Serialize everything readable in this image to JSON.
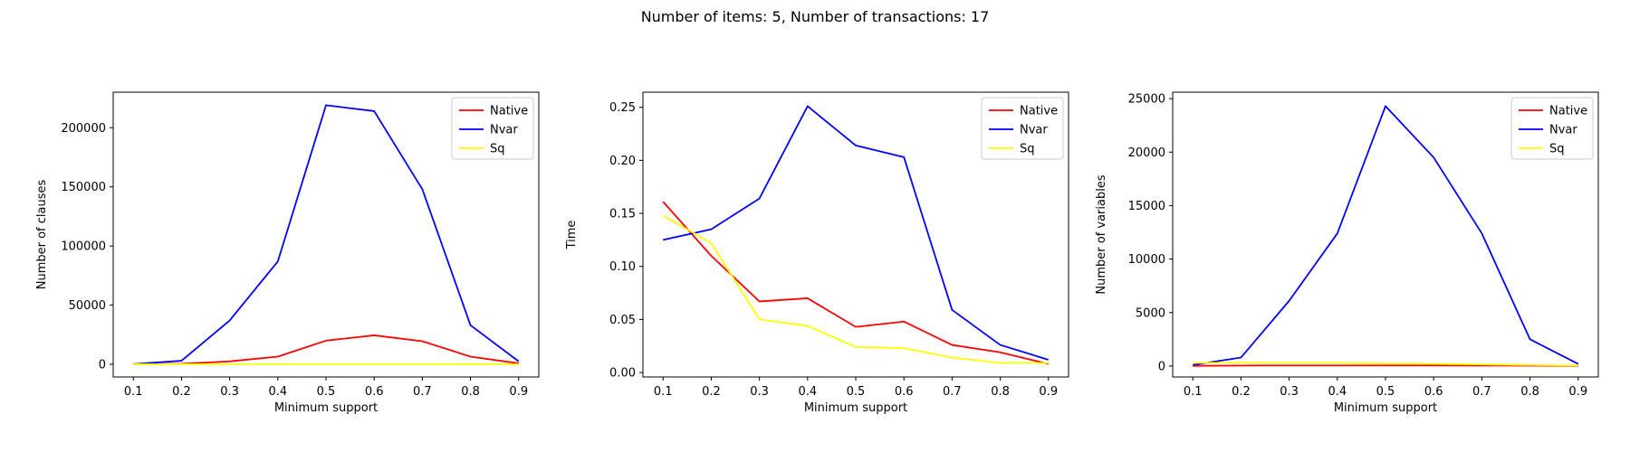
{
  "figure": {
    "title": "Number of items: 5, Number of transactions: 17"
  },
  "chart_data": [
    {
      "type": "line",
      "title": "",
      "xlabel": "Minimum support",
      "ylabel": "Number of clauses",
      "x": [
        0.1,
        0.2,
        0.3,
        0.4,
        0.5,
        0.6,
        0.7,
        0.8,
        0.9
      ],
      "xticks": [
        "0.1",
        "0.2",
        "0.3",
        "0.4",
        "0.5",
        "0.6",
        "0.7",
        "0.8",
        "0.9"
      ],
      "yticks": [
        0,
        50000,
        100000,
        150000,
        200000
      ],
      "yticklabels": [
        "0",
        "50000",
        "100000",
        "150000",
        "200000"
      ],
      "xlim": [
        0.0582,
        0.9418
      ],
      "ylim": [
        -10700,
        230000
      ],
      "grid": false,
      "legend_position": "top-right",
      "series": [
        {
          "name": "Native",
          "color": "#ff0000",
          "values": [
            100,
            500,
            2500,
            6500,
            20000,
            24500,
            19500,
            6500,
            800
          ]
        },
        {
          "name": "Nvar",
          "color": "#0000ff",
          "values": [
            200,
            3000,
            37000,
            87000,
            219000,
            214000,
            148000,
            33000,
            2500
          ]
        },
        {
          "name": "Sq",
          "color": "#ffff00",
          "values": [
            50,
            100,
            200,
            200,
            200,
            200,
            200,
            150,
            100
          ]
        }
      ]
    },
    {
      "type": "line",
      "title": "",
      "xlabel": "Minimum support",
      "ylabel": "Time",
      "x": [
        0.1,
        0.2,
        0.3,
        0.4,
        0.5,
        0.6,
        0.7,
        0.8,
        0.9
      ],
      "xticks": [
        "0.1",
        "0.2",
        "0.3",
        "0.4",
        "0.5",
        "0.6",
        "0.7",
        "0.8",
        "0.9"
      ],
      "yticks": [
        0,
        0.05,
        0.1,
        0.15,
        0.2,
        0.25
      ],
      "yticklabels": [
        "0.00",
        "0.05",
        "0.10",
        "0.15",
        "0.20",
        "0.25"
      ],
      "xlim": [
        0.0582,
        0.9418
      ],
      "ylim": [
        -0.0042,
        0.2642
      ],
      "grid": false,
      "legend_position": "top-right",
      "series": [
        {
          "name": "Native",
          "color": "#ff0000",
          "values": [
            0.161,
            0.11,
            0.067,
            0.07,
            0.043,
            0.048,
            0.026,
            0.019,
            0.008
          ]
        },
        {
          "name": "Nvar",
          "color": "#0000ff",
          "values": [
            0.125,
            0.135,
            0.164,
            0.251,
            0.214,
            0.203,
            0.059,
            0.026,
            0.012
          ]
        },
        {
          "name": "Sq",
          "color": "#ffff00",
          "values": [
            0.148,
            0.122,
            0.05,
            0.044,
            0.024,
            0.023,
            0.014,
            0.009,
            0.009
          ]
        }
      ]
    },
    {
      "type": "line",
      "title": "",
      "xlabel": "Minimum support",
      "ylabel": "Number of variables",
      "x": [
        0.1,
        0.2,
        0.3,
        0.4,
        0.5,
        0.6,
        0.7,
        0.8,
        0.9
      ],
      "xticks": [
        "0.1",
        "0.2",
        "0.3",
        "0.4",
        "0.5",
        "0.6",
        "0.7",
        "0.8",
        "0.9"
      ],
      "yticks": [
        0,
        5000,
        10000,
        15000,
        20000,
        25000
      ],
      "yticklabels": [
        "0",
        "5000",
        "10000",
        "15000",
        "20000",
        "25000"
      ],
      "xlim": [
        0.0582,
        0.9418
      ],
      "ylim": [
        -1020,
        25600
      ],
      "grid": false,
      "legend_position": "top-right",
      "series": [
        {
          "name": "Native",
          "color": "#ff0000",
          "values": [
            20,
            50,
            60,
            60,
            60,
            60,
            50,
            40,
            20
          ]
        },
        {
          "name": "Nvar",
          "color": "#0000ff",
          "values": [
            100,
            800,
            6100,
            12400,
            24300,
            19500,
            12400,
            2500,
            200
          ]
        },
        {
          "name": "Sq",
          "color": "#ffff00",
          "values": [
            300,
            300,
            300,
            300,
            250,
            200,
            150,
            100,
            50
          ]
        }
      ]
    }
  ]
}
